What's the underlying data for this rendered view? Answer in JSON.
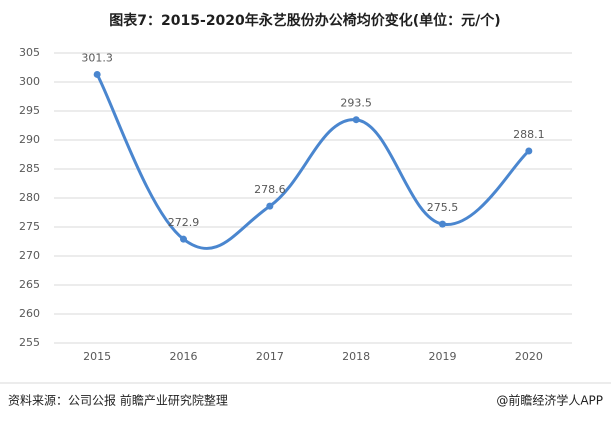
{
  "chart_data": {
    "type": "line",
    "title": "图表7：2015-2020年永艺股份办公椅均价变化(单位：元/个)",
    "categories": [
      "2015",
      "2016",
      "2017",
      "2018",
      "2019",
      "2020"
    ],
    "values": [
      301.3,
      272.9,
      278.6,
      293.5,
      275.5,
      288.1
    ],
    "color": "#4a86cf",
    "ylim": [
      255,
      305
    ],
    "yticks": [
      255,
      260,
      265,
      270,
      275,
      280,
      285,
      290,
      295,
      300,
      305
    ],
    "grid": true,
    "source": "资料来源：公司公报 前瞻产业研究院整理",
    "credit": "@前瞻经济学人APP"
  }
}
